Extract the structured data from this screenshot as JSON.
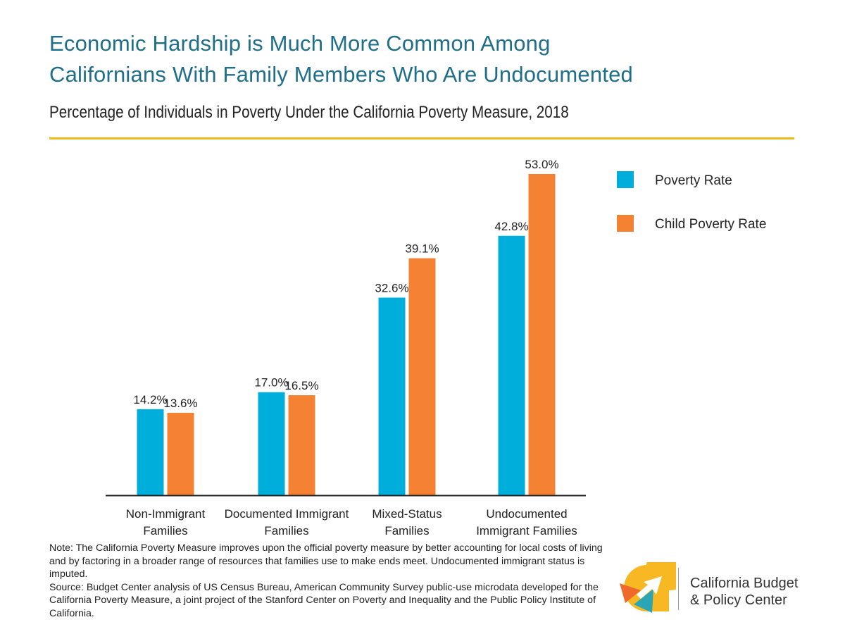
{
  "title_line1": "Economic Hardship is Much More Common Among",
  "title_line2": "Californians With Family Members Who Are Undocumented",
  "subtitle": "Percentage of Individuals in Poverty Under the California Poverty Measure, 2018",
  "colors": {
    "accent_rule": "#f1b81c",
    "title": "#1f6f8b",
    "poverty": "#00aedb",
    "child": "#f58233"
  },
  "chart_data": {
    "type": "bar",
    "title": "Percentage of Individuals in Poverty Under the California Poverty Measure, 2018",
    "categories": [
      [
        "Non-Immigrant",
        "Families"
      ],
      [
        "Documented Immigrant",
        "Families"
      ],
      [
        "Mixed-Status",
        "Families"
      ],
      [
        "Undocumented",
        "Immigrant Families"
      ]
    ],
    "series": [
      {
        "name": "Poverty Rate",
        "color": "#00aedb",
        "values": [
          14.2,
          17.0,
          32.6,
          42.8
        ],
        "labels": [
          "14.2%",
          "17.0%",
          "32.6%",
          "42.8%"
        ]
      },
      {
        "name": "Child Poverty Rate",
        "color": "#f58233",
        "values": [
          13.6,
          16.5,
          39.1,
          53.0
        ],
        "labels": [
          "13.6%",
          "16.5%",
          "39.1%",
          "53.0%"
        ]
      }
    ],
    "ylim": [
      0,
      53
    ],
    "grid": false,
    "legend_position": "top-right"
  },
  "note": {
    "text": "Note: The California Poverty Measure improves upon the official poverty measure by better accounting for local costs of living and by factoring in a broader range of resources that families use to make ends meet. Undocumented immigrant status is imputed.",
    "source": "Source: Budget Center analysis of US Census Bureau, American Community Survey public-use microdata developed for the California Poverty Measure, a joint project of the Stanford Center on Poverty and Inequality and the Public Policy Institute of California."
  },
  "brand": {
    "line1": "California Budget",
    "line2": "& Policy Center"
  }
}
